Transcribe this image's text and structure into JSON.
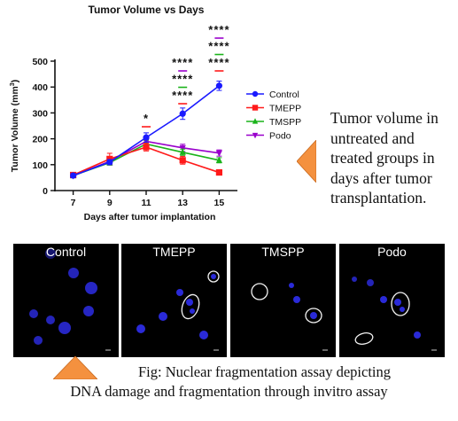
{
  "chart_data": {
    "type": "line",
    "title": "Tumor Volume vs Days",
    "xlabel": "Days after tumor implantation",
    "ylabel_main": "Tumor Volume (mm",
    "ylabel_sup": "3",
    "ylabel_close": ")",
    "x": [
      7,
      9,
      11,
      13,
      15
    ],
    "xlim": [
      6,
      16
    ],
    "ylim": [
      0,
      500
    ],
    "yticks": [
      0,
      100,
      200,
      300,
      400,
      500
    ],
    "legend_position": "right",
    "series": [
      {
        "name": "Control",
        "color": "#1a1aff",
        "marker": "circle",
        "values": [
          58,
          110,
          205,
          297,
          405
        ],
        "errors": [
          8,
          10,
          18,
          22,
          18
        ]
      },
      {
        "name": "TMEPP",
        "color": "#ff1a1a",
        "marker": "square",
        "values": [
          60,
          122,
          168,
          117,
          70
        ],
        "errors": [
          8,
          22,
          15,
          15,
          8
        ]
      },
      {
        "name": "TMSPP",
        "color": "#1ab31a",
        "marker": "triangle",
        "values": [
          58,
          108,
          180,
          148,
          117
        ],
        "errors": [
          8,
          10,
          15,
          12,
          10
        ]
      },
      {
        "name": "Podo",
        "color": "#9900cc",
        "marker": "triangle-down",
        "values": [
          57,
          113,
          190,
          165,
          145
        ],
        "errors": [
          7,
          10,
          15,
          14,
          12
        ]
      }
    ],
    "annotations": [
      {
        "x": 11,
        "rows": [
          {
            "text": "*",
            "line_color": "#ff1a1a"
          }
        ]
      },
      {
        "x": 13,
        "rows": [
          {
            "text": "****",
            "line_color": "#9900cc"
          },
          {
            "text": "****",
            "line_color": "#1ab31a"
          },
          {
            "text": "****",
            "line_color": "#ff1a1a"
          }
        ]
      },
      {
        "x": 15,
        "rows": [
          {
            "text": "****",
            "line_color": "#9900cc"
          },
          {
            "text": "****",
            "line_color": "#1ab31a"
          },
          {
            "text": "****",
            "line_color": "#ff1a1a"
          }
        ]
      }
    ]
  },
  "side_text": "Tumor volume in untreated and treated groups in days after tumor transplantation.",
  "panels": [
    {
      "label": "Control"
    },
    {
      "label": "TMEPP"
    },
    {
      "label": "TMSPP"
    },
    {
      "label": "Podo"
    }
  ],
  "caption": {
    "line1": "Fig: Nuclear fragmentation assay depicting",
    "line2": "DNA damage and fragmentation through invitro assay"
  },
  "colors": {
    "triangle": "#f4913f",
    "nucleus": "#2a2ad8",
    "ring": "#f2f2f2"
  }
}
